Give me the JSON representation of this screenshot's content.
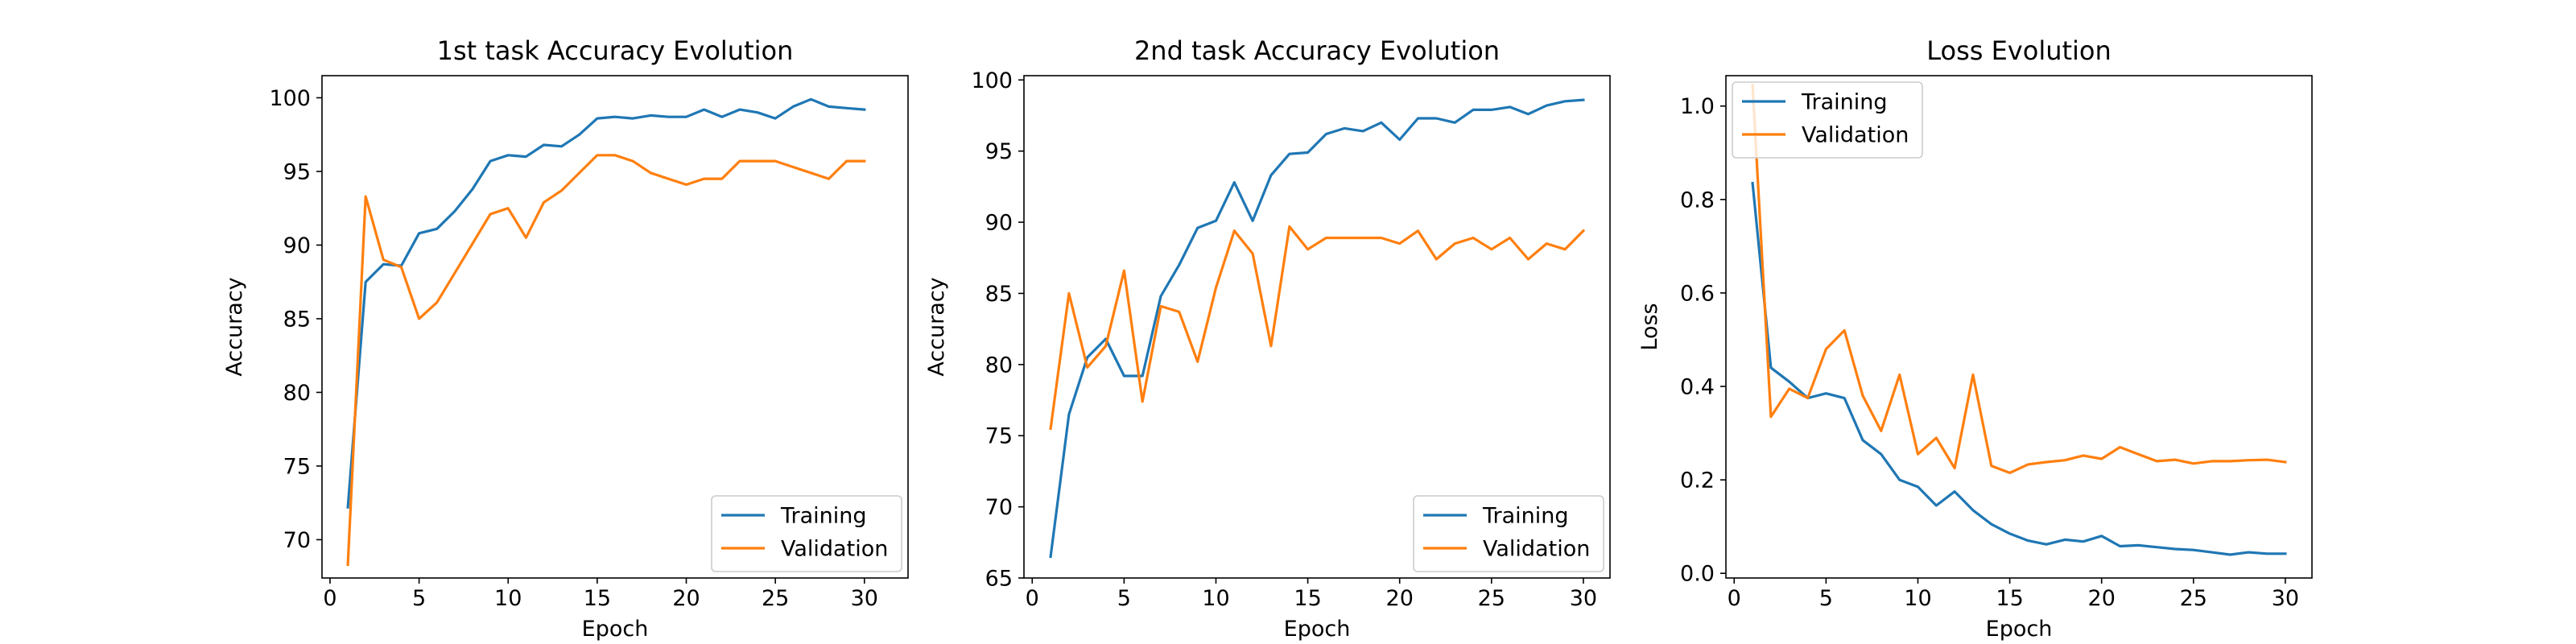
{
  "figure": {
    "background": "#ffffff"
  },
  "colors": {
    "training": "#1f77b4",
    "validation": "#ff7f0e",
    "axis": "#000000",
    "legend_border": "#cccccc"
  },
  "chart_data": [
    {
      "type": "line",
      "title": "1st task Accuracy Evolution",
      "xlabel": "Epoch",
      "ylabel": "Accuracy",
      "xlim": [
        -0.45,
        32.45
      ],
      "ylim": [
        67.4,
        101.5
      ],
      "xticks": [
        0,
        5,
        10,
        15,
        20,
        25,
        30
      ],
      "yticks": [
        70,
        75,
        80,
        85,
        90,
        95,
        100
      ],
      "grid": false,
      "legend_position": "lower-right",
      "x": [
        1,
        2,
        3,
        4,
        5,
        6,
        7,
        8,
        9,
        10,
        11,
        12,
        13,
        14,
        15,
        16,
        17,
        18,
        19,
        20,
        21,
        22,
        23,
        24,
        25,
        26,
        27,
        28,
        29,
        30
      ],
      "series": [
        {
          "name": "Training",
          "color": "#1f77b4",
          "values": [
            72.2,
            87.5,
            88.7,
            88.6,
            90.8,
            91.1,
            92.3,
            93.8,
            95.7,
            96.1,
            96.0,
            96.8,
            96.7,
            97.5,
            98.6,
            98.7,
            98.6,
            98.8,
            98.7,
            98.7,
            99.2,
            98.7,
            99.2,
            99.0,
            98.6,
            99.4,
            99.9,
            99.4,
            99.3,
            99.2
          ]
        },
        {
          "name": "Validation",
          "color": "#ff7f0e",
          "values": [
            68.3,
            93.3,
            89.0,
            88.5,
            85.0,
            86.1,
            88.1,
            90.1,
            92.1,
            92.5,
            90.5,
            92.9,
            93.7,
            94.9,
            96.1,
            96.1,
            95.7,
            94.9,
            94.5,
            94.1,
            94.5,
            94.5,
            95.7,
            95.7,
            95.7,
            95.3,
            94.9,
            94.5,
            95.7,
            95.7
          ]
        }
      ]
    },
    {
      "type": "line",
      "title": "2nd task Accuracy Evolution",
      "xlabel": "Epoch",
      "ylabel": "Accuracy",
      "xlim": [
        -0.45,
        31.45
      ],
      "ylim": [
        65.0,
        100.3
      ],
      "xticks": [
        0,
        5,
        10,
        15,
        20,
        25,
        30
      ],
      "yticks": [
        65,
        70,
        75,
        80,
        85,
        90,
        95,
        100
      ],
      "grid": false,
      "legend_position": "lower-right",
      "x": [
        1,
        2,
        3,
        4,
        5,
        6,
        7,
        8,
        9,
        10,
        11,
        12,
        13,
        14,
        15,
        16,
        17,
        18,
        19,
        20,
        21,
        22,
        23,
        24,
        25,
        26,
        27,
        28,
        29,
        30
      ],
      "series": [
        {
          "name": "Training",
          "color": "#1f77b4",
          "values": [
            66.5,
            76.5,
            80.5,
            81.8,
            79.2,
            79.2,
            84.8,
            87.0,
            89.6,
            90.1,
            92.8,
            90.1,
            93.3,
            94.8,
            94.9,
            96.2,
            96.6,
            96.4,
            97.0,
            95.8,
            97.3,
            97.3,
            97.0,
            97.9,
            97.9,
            98.1,
            97.6,
            98.2,
            98.5,
            98.6
          ]
        },
        {
          "name": "Validation",
          "color": "#ff7f0e",
          "values": [
            75.5,
            85.0,
            79.8,
            81.3,
            86.6,
            77.4,
            84.1,
            83.7,
            80.2,
            85.4,
            89.4,
            87.8,
            81.3,
            89.7,
            88.1,
            88.9,
            88.9,
            88.9,
            88.9,
            88.5,
            89.4,
            87.4,
            88.5,
            88.9,
            88.1,
            88.9,
            87.4,
            88.5,
            88.1,
            89.4
          ]
        }
      ]
    },
    {
      "type": "line",
      "title": "Loss Evolution",
      "xlabel": "Epoch",
      "ylabel": "Loss",
      "xlim": [
        -0.45,
        31.45
      ],
      "ylim": [
        -0.01,
        1.065
      ],
      "xticks": [
        0,
        5,
        10,
        15,
        20,
        25,
        30
      ],
      "yticks": [
        0.0,
        0.2,
        0.4,
        0.6,
        0.8,
        1.0
      ],
      "ytick_labels": [
        "0.0",
        "0.2",
        "0.4",
        "0.6",
        "0.8",
        "1.0"
      ],
      "grid": false,
      "legend_position": "upper-left",
      "x": [
        1,
        2,
        3,
        4,
        5,
        6,
        7,
        8,
        9,
        10,
        11,
        12,
        13,
        14,
        15,
        16,
        17,
        18,
        19,
        20,
        21,
        22,
        23,
        24,
        25,
        26,
        27,
        28,
        29,
        30
      ],
      "series": [
        {
          "name": "Training",
          "color": "#1f77b4",
          "values": [
            0.835,
            0.44,
            0.41,
            0.375,
            0.385,
            0.375,
            0.285,
            0.255,
            0.2,
            0.185,
            0.145,
            0.175,
            0.135,
            0.105,
            0.085,
            0.07,
            0.062,
            0.072,
            0.068,
            0.08,
            0.058,
            0.06,
            0.056,
            0.052,
            0.05,
            0.045,
            0.04,
            0.045,
            0.042,
            0.042
          ]
        },
        {
          "name": "Validation",
          "color": "#ff7f0e",
          "values": [
            1.045,
            0.335,
            0.395,
            0.375,
            0.48,
            0.52,
            0.38,
            0.305,
            0.425,
            0.255,
            0.29,
            0.225,
            0.425,
            0.23,
            0.215,
            0.233,
            0.238,
            0.242,
            0.252,
            0.245,
            0.27,
            0.255,
            0.24,
            0.243,
            0.235,
            0.24,
            0.24,
            0.242,
            0.243,
            0.238
          ]
        }
      ]
    }
  ]
}
